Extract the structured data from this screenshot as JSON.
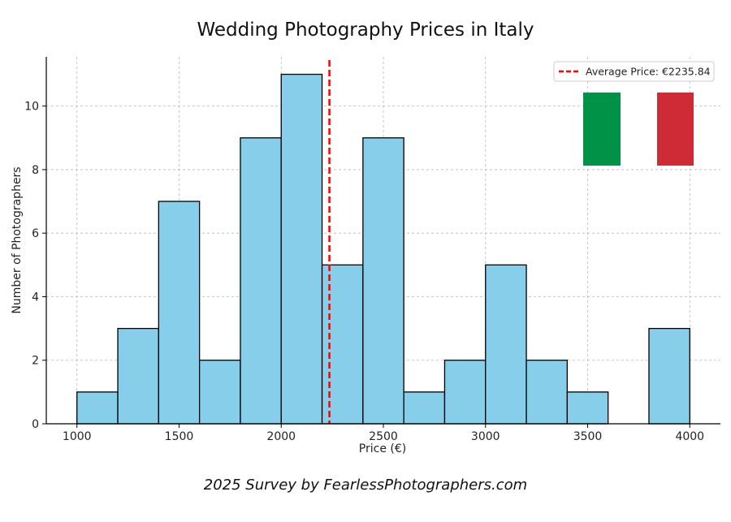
{
  "title": "Wedding Photography Prices in Italy",
  "caption": "2025 Survey by FearlessPhotographers.com",
  "colors": {
    "bar_fill": "#87ceeb",
    "bar_edge": "#000000",
    "mean_line": "#ff0000",
    "flag_green": "#009246",
    "flag_white": "#ffffff",
    "flag_red": "#ce2b37"
  },
  "legend": {
    "label": "Average Price: €2235.84",
    "placement": "top-right"
  },
  "chart_data": {
    "type": "bar",
    "subtype": "histogram",
    "bin_width": 200,
    "bins": [
      {
        "start": 1000,
        "end": 1200,
        "count": 1
      },
      {
        "start": 1200,
        "end": 1400,
        "count": 3
      },
      {
        "start": 1400,
        "end": 1600,
        "count": 7
      },
      {
        "start": 1600,
        "end": 1800,
        "count": 2
      },
      {
        "start": 1800,
        "end": 2000,
        "count": 9
      },
      {
        "start": 2000,
        "end": 2200,
        "count": 11
      },
      {
        "start": 2200,
        "end": 2400,
        "count": 5
      },
      {
        "start": 2400,
        "end": 2600,
        "count": 9
      },
      {
        "start": 2600,
        "end": 2800,
        "count": 1
      },
      {
        "start": 2800,
        "end": 3000,
        "count": 2
      },
      {
        "start": 3000,
        "end": 3200,
        "count": 5
      },
      {
        "start": 3200,
        "end": 3400,
        "count": 2
      },
      {
        "start": 3400,
        "end": 3600,
        "count": 1
      },
      {
        "start": 3600,
        "end": 3800,
        "count": 0
      },
      {
        "start": 3800,
        "end": 4000,
        "count": 3
      }
    ],
    "mean": 2235.84,
    "title": "Wedding Photography Prices in Italy",
    "xlabel": "Price (€)",
    "ylabel": "Number of Photographers",
    "xlim": [
      850,
      4150
    ],
    "ylim": [
      0,
      11.55
    ],
    "xticks": [
      1000,
      1500,
      2000,
      2500,
      3000,
      3500,
      4000
    ],
    "yticks": [
      0,
      2,
      4,
      6,
      8,
      10
    ],
    "grid": true
  }
}
